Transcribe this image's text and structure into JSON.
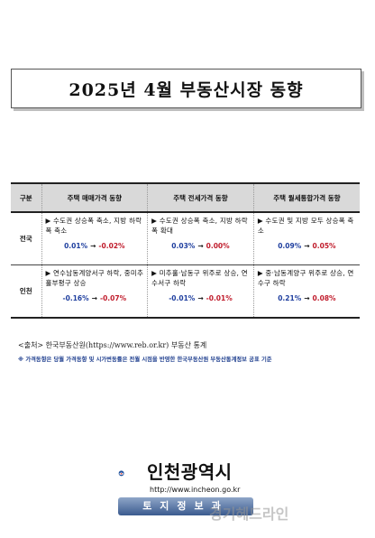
{
  "title": "2025년 4월 부동산시장 동향",
  "table": {
    "headers": [
      "구분",
      "주택 매매가격 동향",
      "주택 전세가격 동향",
      "주택 월세통합가격 동향"
    ],
    "rows": [
      {
        "region": "전국",
        "cells": [
          {
            "desc": "▶ 수도권 상승폭 축소, 지방 하락폭 축소",
            "from": "0.01%",
            "to": "-0.02%"
          },
          {
            "desc": "▶ 수도권 상승폭 축소, 지방 하락폭 확대",
            "from": "0.03%",
            "to": "0.00%"
          },
          {
            "desc": "▶ 수도권 및 지방 모두 상승폭 축소",
            "from": "0.09%",
            "to": "0.05%"
          }
        ]
      },
      {
        "region": "인천",
        "cells": [
          {
            "desc": "▶ 연수남동계양서구 하락, 중미추홀부평구 상승",
            "from": "-0.16%",
            "to": "-0.07%"
          },
          {
            "desc": "▶ 미추홀·남동구 위주로 상승, 연수서구 하락",
            "from": "-0.01%",
            "to": "-0.01%"
          },
          {
            "desc": "▶ 중·남동계양구 위주로 상승, 연수구 하락",
            "from": "0.21%",
            "to": "0.08%"
          }
        ]
      }
    ],
    "arrow": "→"
  },
  "source": "<출처> 한국부동산원(https://www.reb.or.kr) 부동산 통계",
  "note": "※ 가격동향은 당월 가격동향 및 시가변동률은 전월 시점을 반영한 한국부동산원 부동산통계정보 공표 기준",
  "logo": {
    "name": "인천광역시",
    "url": "http://www.incheon.go.kr",
    "banner": "토지정보과"
  },
  "watermark": "경기헤드라인",
  "colors": {
    "from": "#1f3f9f",
    "to": "#c01b2b"
  }
}
